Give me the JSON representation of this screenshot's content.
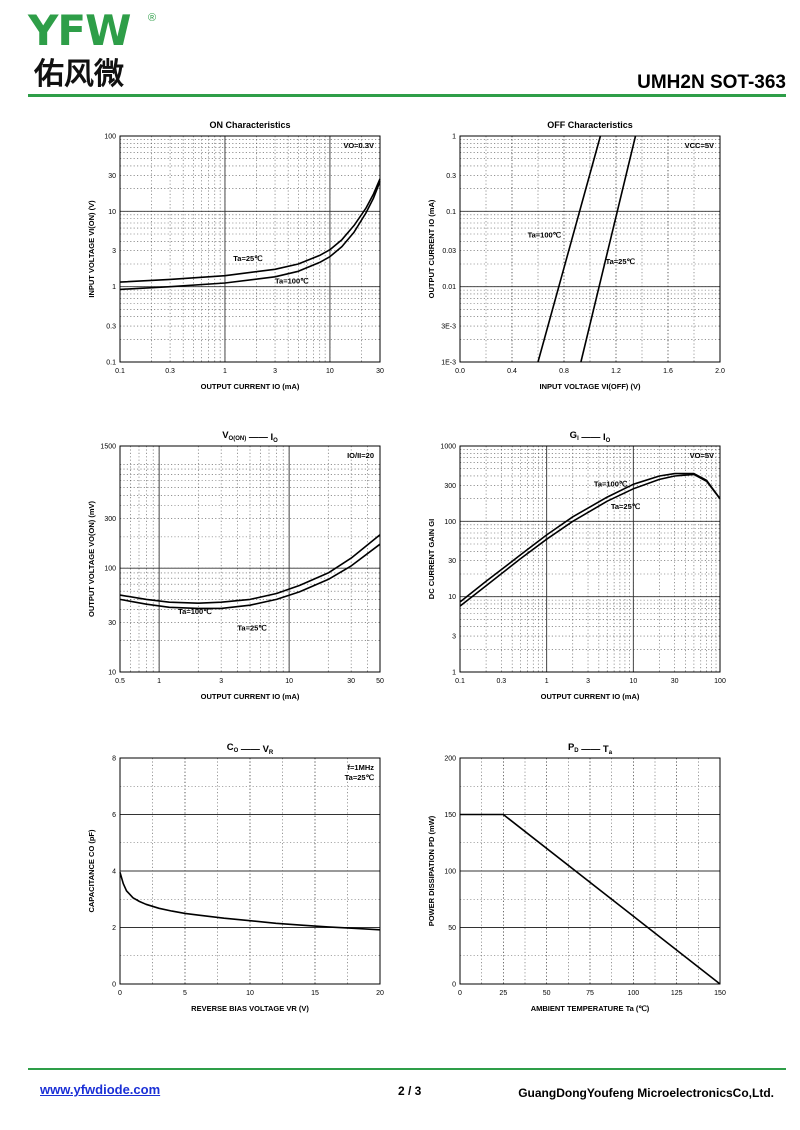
{
  "header": {
    "logo_latin": "YFW",
    "logo_registered": "®",
    "logo_chinese": "佑风微",
    "title": "UMH2N SOT-363"
  },
  "footer": {
    "website": "www.yfwdiode.com",
    "page": "2 / 3",
    "company": "GuangDongYoufeng MicroelectronicsCo,Ltd."
  },
  "colors": {
    "brand_green": "#2e9e48",
    "link_blue": "#1a2fd6"
  },
  "chart_data": [
    {
      "id": "on",
      "type": "line",
      "title": "ON Characteristics",
      "xlabel": "OUTPUT CURRENT   IO   (mA)",
      "ylabel": "INPUT VOLTAGE   VI(ON)   (V)",
      "xscale": "log",
      "yscale": "log",
      "xlim": [
        0.1,
        30
      ],
      "ylim": [
        0.1,
        100
      ],
      "xticks": [
        0.1,
        0.3,
        1,
        3,
        10,
        30
      ],
      "xticklabels": [
        "0.1",
        "0.3",
        "1",
        "3",
        "10",
        "30"
      ],
      "yticks": [
        0.1,
        0.3,
        1,
        3,
        10,
        30,
        100
      ],
      "yticklabels": [
        "0.1",
        "0.3",
        "1",
        "3",
        "10",
        "30",
        "100"
      ],
      "condition": "VO=0.3V",
      "series": [
        {
          "name": "Ta=25℃",
          "x": [
            0.1,
            0.3,
            1,
            3,
            5,
            8,
            10,
            13,
            17,
            22,
            26,
            30
          ],
          "y": [
            1.15,
            1.25,
            1.4,
            1.7,
            2.0,
            2.6,
            3.1,
            4.2,
            6.5,
            11,
            17,
            27
          ]
        },
        {
          "name": "Ta=100℃",
          "x": [
            0.1,
            0.3,
            1,
            3,
            5,
            8,
            10,
            13,
            17,
            22,
            26,
            30
          ],
          "y": [
            0.92,
            1.0,
            1.12,
            1.35,
            1.6,
            2.1,
            2.5,
            3.4,
            5.3,
            9.5,
            15,
            25
          ]
        }
      ],
      "annotations": [
        {
          "label": "Ta=25℃",
          "x": 1.2,
          "y": 2.2
        },
        {
          "label": "Ta=100℃",
          "x": 3.0,
          "y": 1.1
        }
      ]
    },
    {
      "id": "off",
      "type": "line",
      "title": "OFF Characteristics",
      "xlabel": "INPUT VOLTAGE   VI(OFF)   (V)",
      "ylabel": "OUTPUT CURRENT   IO   (mA)",
      "xscale": "linear",
      "yscale": "log",
      "xlim": [
        0,
        2.0
      ],
      "ylim": [
        0.001,
        1
      ],
      "xticks": [
        0,
        0.4,
        0.8,
        1.2,
        1.6,
        2.0
      ],
      "xticklabels": [
        "0.0",
        "0.4",
        "0.8",
        "1.2",
        "1.6",
        "2.0"
      ],
      "yticks": [
        0.001,
        0.003,
        0.01,
        0.03,
        0.1,
        0.3,
        1
      ],
      "yticklabels": [
        "1E-3",
        "3E-3",
        "0.01",
        "0.03",
        "0.1",
        "0.3",
        "1"
      ],
      "condition": "VCC=5V",
      "series": [
        {
          "name": "Ta=100℃",
          "x": [
            0.6,
            1.08
          ],
          "y": [
            0.001,
            1
          ]
        },
        {
          "name": "Ta=25℃",
          "x": [
            0.93,
            1.35
          ],
          "y": [
            0.001,
            1
          ]
        }
      ],
      "annotations": [
        {
          "label": "Ta=100℃",
          "x": 0.52,
          "y": 0.045
        },
        {
          "label": "Ta=25℃",
          "x": 1.12,
          "y": 0.02
        }
      ]
    },
    {
      "id": "vcon",
      "type": "line",
      "title_main": "V",
      "title_sub": "O(ON)",
      "title_dash": "——",
      "title_main2": "I",
      "title_sub2": "O",
      "xlabel": "OUTPUT CURRENT   IO   (mA)",
      "ylabel": "OUTPUT VOLTAGE   VO(ON)   (mV)",
      "xscale": "log",
      "yscale": "log",
      "xlim": [
        0.5,
        50
      ],
      "ylim": [
        10,
        1500
      ],
      "xticks": [
        0.5,
        1,
        3,
        10,
        30,
        50
      ],
      "xticklabels": [
        "0.5",
        "1",
        "3",
        "10",
        "30",
        "50"
      ],
      "yticks": [
        10,
        30,
        100,
        300,
        1500
      ],
      "yticklabels": [
        "10",
        "30",
        "100",
        "300",
        "1500"
      ],
      "condition": "IO/II=20",
      "series": [
        {
          "name": "Ta=100℃",
          "x": [
            0.5,
            0.8,
            1.2,
            2,
            3,
            5,
            8,
            12,
            20,
            30,
            50
          ],
          "y": [
            55,
            50,
            47,
            46,
            47,
            50,
            57,
            68,
            90,
            125,
            210
          ]
        },
        {
          "name": "Ta=25℃",
          "x": [
            0.5,
            0.8,
            1.2,
            2,
            3,
            5,
            8,
            12,
            20,
            30,
            50
          ],
          "y": [
            50,
            45,
            42,
            41,
            41,
            44,
            50,
            59,
            78,
            105,
            170
          ]
        }
      ],
      "annotations": [
        {
          "label": "Ta=100℃",
          "x": 1.4,
          "y": 36
        },
        {
          "label": "Ta=25℃",
          "x": 4.0,
          "y": 25
        }
      ]
    },
    {
      "id": "gi",
      "type": "line",
      "title_main": "G",
      "title_sub": "I",
      "title_dash": "——",
      "title_main2": "I",
      "title_sub2": "O",
      "xlabel": "OUTPUT CURRENT   IO   (mA)",
      "ylabel": "DC CURRENT GAIN   GI",
      "xscale": "log",
      "yscale": "log",
      "xlim": [
        0.1,
        100
      ],
      "ylim": [
        1,
        1000
      ],
      "xticks": [
        0.1,
        0.3,
        1,
        3,
        10,
        30,
        100
      ],
      "xticklabels": [
        "0.1",
        "0.3",
        "1",
        "3",
        "10",
        "30",
        "100"
      ],
      "yticks": [
        1,
        3,
        10,
        30,
        100,
        300,
        1000
      ],
      "yticklabels": [
        "1",
        "3",
        "10",
        "30",
        "100",
        "300",
        "1000"
      ],
      "condition": "VO=5V",
      "series": [
        {
          "name": "Ta=100℃",
          "x": [
            0.1,
            0.2,
            0.5,
            1,
            2,
            5,
            10,
            20,
            30,
            50,
            70,
            100
          ],
          "y": [
            8.5,
            16,
            36,
            66,
            115,
            210,
            310,
            400,
            430,
            430,
            350,
            200
          ]
        },
        {
          "name": "Ta=25℃",
          "x": [
            0.1,
            0.2,
            0.5,
            1,
            2,
            5,
            10,
            20,
            30,
            50,
            70,
            100
          ],
          "y": [
            7.5,
            14,
            32,
            58,
            100,
            185,
            270,
            360,
            400,
            420,
            340,
            200
          ]
        }
      ],
      "annotations": [
        {
          "label": "Ta=100℃",
          "x": 3.5,
          "y": 290
        },
        {
          "label": "Ta=25℃",
          "x": 5.5,
          "y": 145
        }
      ]
    },
    {
      "id": "co",
      "type": "line",
      "title_main": "C",
      "title_sub": "O",
      "title_dash": "——",
      "title_main2": "V",
      "title_sub2": "R",
      "xlabel": "REVERSE BIAS VOLTAGE   VR   (V)",
      "ylabel": "CAPACITANCE   CO   (pF)",
      "xscale": "linear",
      "yscale": "linear",
      "xlim": [
        0,
        20
      ],
      "ylim": [
        0,
        8
      ],
      "xticks": [
        0,
        5,
        10,
        15,
        20
      ],
      "xticklabels": [
        "0",
        "5",
        "10",
        "15",
        "20"
      ],
      "yticks": [
        0,
        2,
        4,
        6,
        8
      ],
      "yticklabels": [
        "0",
        "2",
        "4",
        "6",
        "8"
      ],
      "condition_lines": [
        "f=1MHz",
        "Ta=25℃"
      ],
      "series": [
        {
          "name": "",
          "x": [
            0,
            0.25,
            0.5,
            1,
            1.5,
            2,
            3,
            4,
            5,
            6,
            8,
            10,
            12,
            14,
            16,
            18,
            20
          ],
          "y": [
            3.95,
            3.55,
            3.3,
            3.05,
            2.92,
            2.82,
            2.68,
            2.58,
            2.5,
            2.44,
            2.33,
            2.24,
            2.15,
            2.08,
            2.02,
            1.97,
            1.92
          ]
        }
      ]
    },
    {
      "id": "pd",
      "type": "line",
      "title_main": "P",
      "title_sub": "D",
      "title_dash": "——",
      "title_main2": "T",
      "title_sub2": "a",
      "xlabel": "AMBIENT TEMPERATURE   Ta   (℃)",
      "ylabel": "POWER DISSIPATION   PD   (mW)",
      "xscale": "linear",
      "yscale": "linear",
      "xlim": [
        0,
        150
      ],
      "ylim": [
        0,
        200
      ],
      "xticks": [
        0,
        25,
        50,
        75,
        100,
        125,
        150
      ],
      "xticklabels": [
        "0",
        "25",
        "50",
        "75",
        "100",
        "125",
        "150"
      ],
      "yticks": [
        0,
        50,
        100,
        150,
        200
      ],
      "yticklabels": [
        "0",
        "50",
        "100",
        "150",
        "200"
      ],
      "series": [
        {
          "name": "",
          "x": [
            0,
            25,
            150
          ],
          "y": [
            150,
            150,
            0
          ]
        }
      ]
    }
  ]
}
